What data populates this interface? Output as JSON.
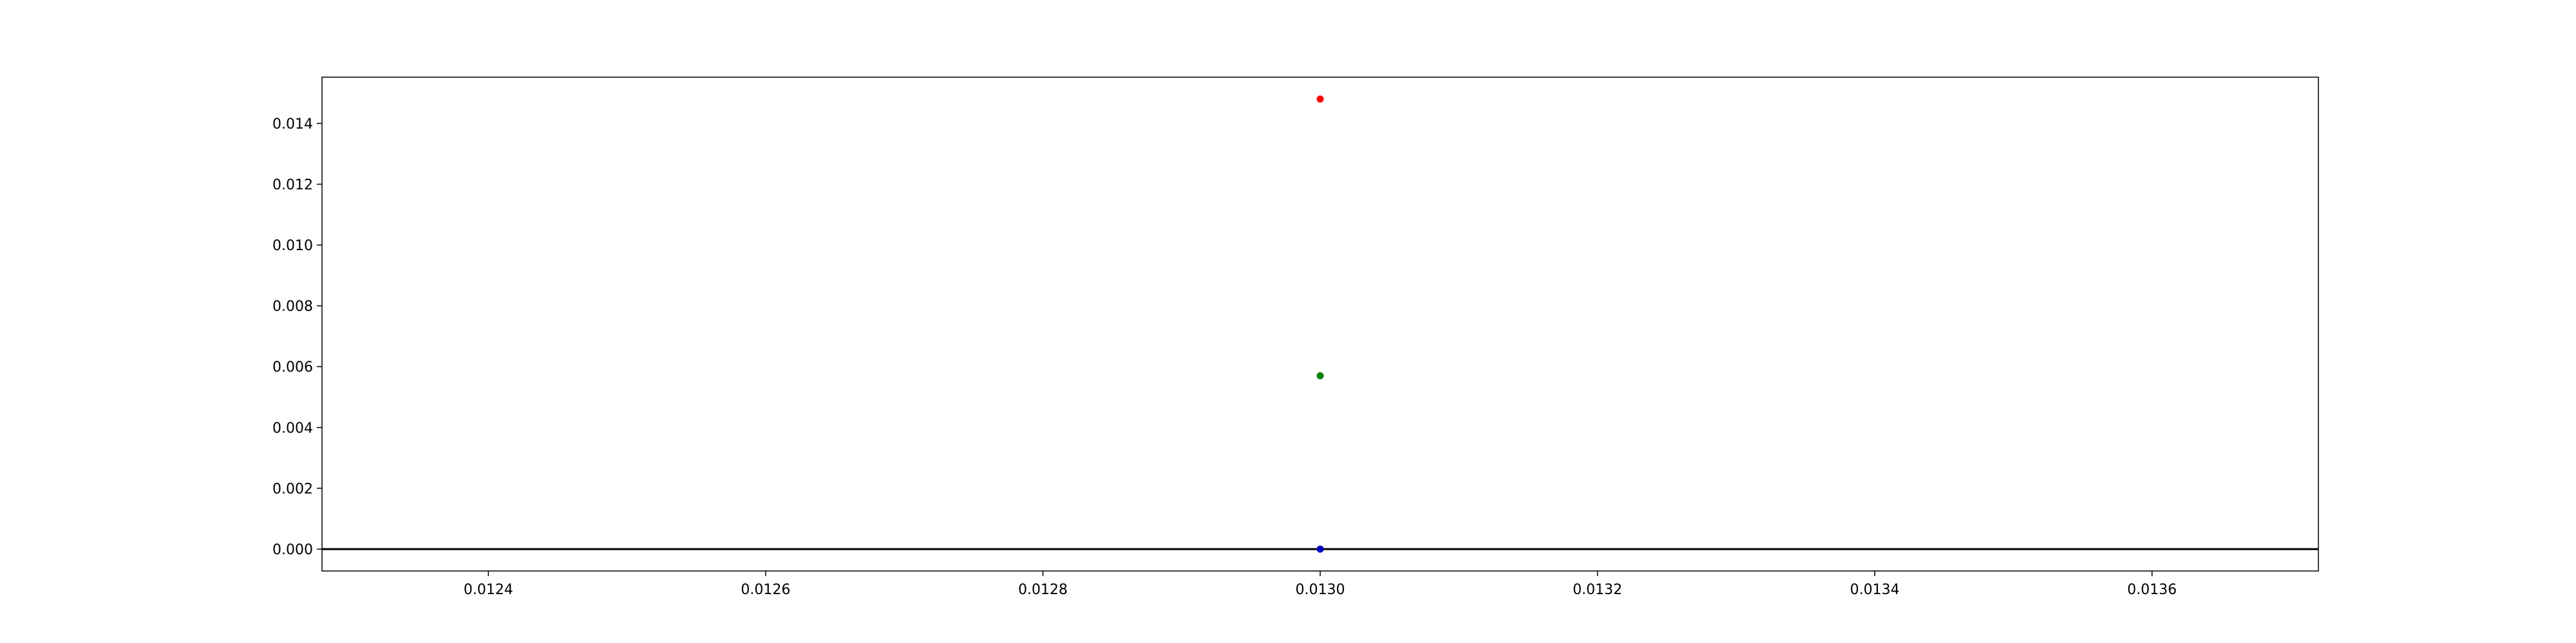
{
  "chart_data": {
    "type": "scatter",
    "title": "",
    "xlabel": "",
    "ylabel": "",
    "xlim": [
      0.01228,
      0.01372
    ],
    "ylim": [
      -0.00072,
      0.01552
    ],
    "grid": false,
    "x_ticks": [
      {
        "value": 0.0124,
        "label": "0.0124"
      },
      {
        "value": 0.0126,
        "label": "0.0126"
      },
      {
        "value": 0.0128,
        "label": "0.0128"
      },
      {
        "value": 0.013,
        "label": "0.0130"
      },
      {
        "value": 0.0132,
        "label": "0.0132"
      },
      {
        "value": 0.0134,
        "label": "0.0134"
      },
      {
        "value": 0.0136,
        "label": "0.0136"
      }
    ],
    "y_ticks": [
      {
        "value": 0.0,
        "label": "0.000"
      },
      {
        "value": 0.002,
        "label": "0.002"
      },
      {
        "value": 0.004,
        "label": "0.004"
      },
      {
        "value": 0.006,
        "label": "0.006"
      },
      {
        "value": 0.008,
        "label": "0.008"
      },
      {
        "value": 0.01,
        "label": "0.010"
      },
      {
        "value": 0.012,
        "label": "0.012"
      },
      {
        "value": 0.014,
        "label": "0.014"
      }
    ],
    "reference_line": {
      "y": 0.0,
      "color": "#000000"
    },
    "points": [
      {
        "x": 0.013,
        "y": 0.0148,
        "color": "#ff0000"
      },
      {
        "x": 0.013,
        "y": 0.0057,
        "color": "#008000"
      },
      {
        "x": 0.013,
        "y": 0.0,
        "color": "#0000bf"
      }
    ]
  }
}
